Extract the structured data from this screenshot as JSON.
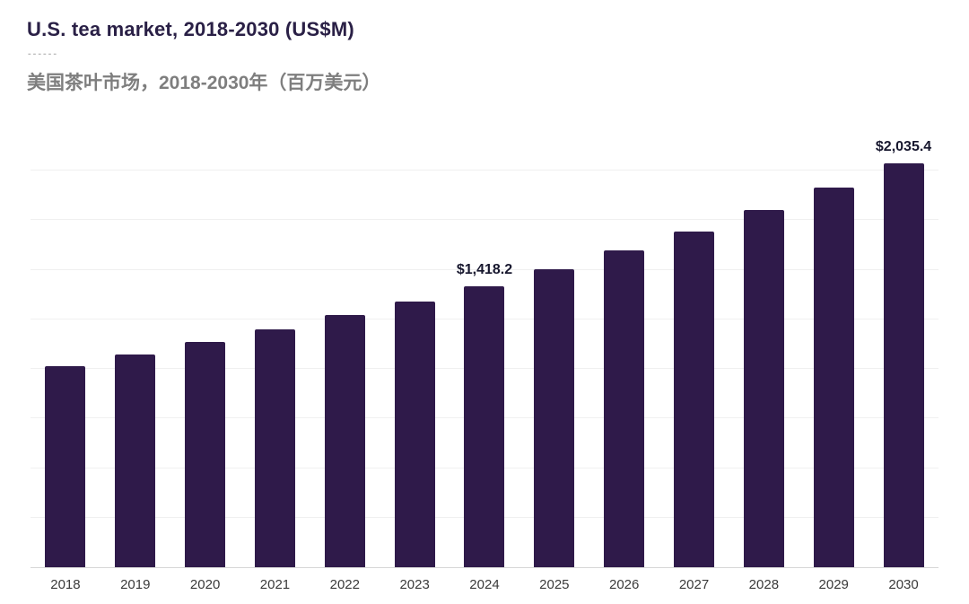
{
  "header": {
    "title": "U.S. tea market, 2018-2030 (US$M)",
    "divider_dashes": "------",
    "subtitle_zh": "美国茶叶市场，2018-2030年（百万美元）"
  },
  "colors": {
    "title": "#2a2046",
    "subtitle": "#7e7e7e",
    "dashes": "#bdbdbd",
    "bar": "#2f1a4a",
    "value_label": "#17172e",
    "axis_label": "#3a3a3a",
    "gridline": "#f0f0f0",
    "baseline": "#d6d6d6"
  },
  "chart_data": {
    "type": "bar",
    "title": "U.S. tea market, 2018-2030 (US$M)",
    "title_zh": "美国茶叶市场，2018-2030年（百万美元）",
    "unit": "US$M",
    "categories": [
      "2018",
      "2019",
      "2020",
      "2021",
      "2022",
      "2023",
      "2024",
      "2025",
      "2026",
      "2027",
      "2028",
      "2029",
      "2030"
    ],
    "values": [
      1015,
      1075,
      1135,
      1200,
      1270,
      1340,
      1418.2,
      1505,
      1600,
      1695,
      1800,
      1915,
      2035.4
    ],
    "labeled_points": [
      {
        "category": "2024",
        "label": "$1,418.2",
        "value": 1418.2
      },
      {
        "category": "2030",
        "label": "$2,035.4",
        "value": 2035.4
      }
    ],
    "xlabel": "",
    "ylabel": "",
    "ylim": [
      0,
      2200
    ],
    "grid": "horizontal",
    "grid_step": 250,
    "legend": "none",
    "values_note": "Only 2024 and 2030 carry data labels in the figure; other values estimated from bar heights"
  }
}
